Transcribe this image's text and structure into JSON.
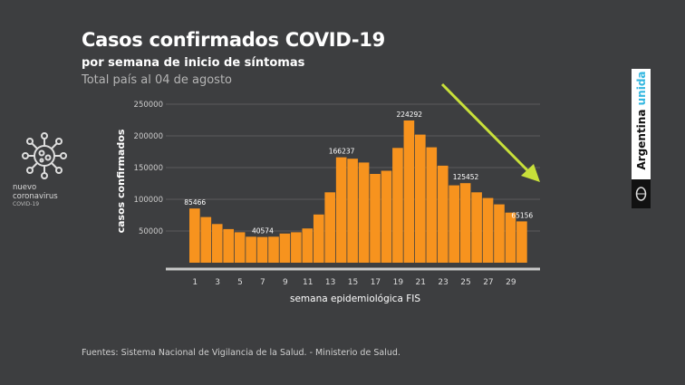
{
  "chart_data": {
    "type": "bar",
    "title": "Casos confirmados COVID-19",
    "subtitle": "por semana de inicio de síntomas",
    "subtitle2": "Total país al 04 de agosto",
    "xlabel": "semana epidemiológica FIS",
    "ylabel": "casos confirmados",
    "ylim": [
      0,
      250000
    ],
    "yticks": [
      50000,
      100000,
      150000,
      200000,
      250000
    ],
    "xtick_labels": [
      "1",
      "3",
      "5",
      "7",
      "9",
      "11",
      "13",
      "15",
      "17",
      "19",
      "21",
      "23",
      "25",
      "27",
      "29"
    ],
    "grid": true,
    "categories": [
      1,
      2,
      3,
      4,
      5,
      6,
      7,
      8,
      9,
      10,
      11,
      12,
      13,
      14,
      15,
      16,
      17,
      18,
      19,
      20,
      21,
      22,
      23,
      24,
      25,
      26,
      27,
      28,
      29,
      30
    ],
    "values": [
      85466,
      72000,
      61000,
      53000,
      48000,
      41000,
      40574,
      41000,
      46000,
      48000,
      54000,
      76000,
      111000,
      166237,
      164000,
      158000,
      140000,
      145000,
      181000,
      224292,
      202000,
      182000,
      153000,
      122000,
      125452,
      111000,
      102000,
      92000,
      79000,
      65156
    ],
    "data_labels": {
      "1": "85466",
      "7": "40574",
      "14": "166237",
      "20": "224292",
      "25": "125452",
      "30": "65156"
    },
    "bar_color": "#f7931e",
    "arrow_color": "#c8e03a"
  },
  "source": "Fuentes: Sistema Nacional de Vigilancia de la Salud. - Ministerio de Salud.",
  "logo_left": {
    "line1": "nuevo",
    "line2": "coronavirus",
    "line3": "COVID-19",
    "icon": "virus-icon"
  },
  "brand": {
    "text1": "Argentina",
    "text2": "unida",
    "icon": "coat-of-arms-icon"
  }
}
